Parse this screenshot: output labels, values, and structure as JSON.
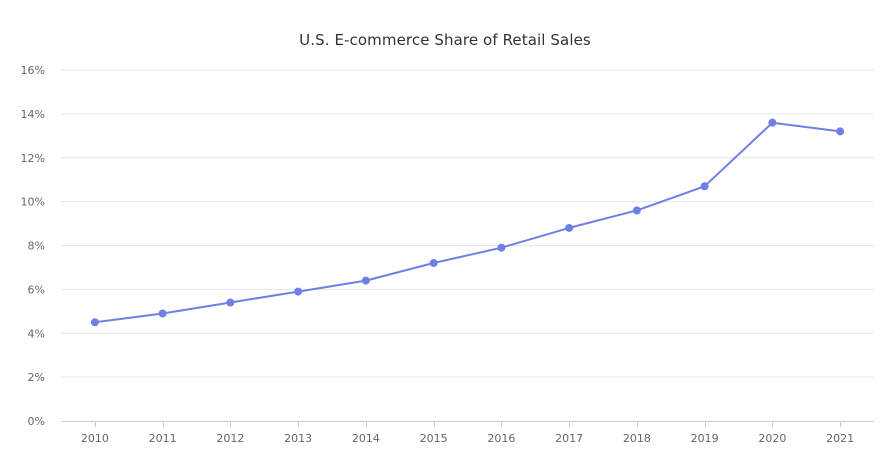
{
  "chart_data": {
    "type": "line",
    "title": "U.S. E-commerce Share of Retail Sales",
    "xlabel": "",
    "ylabel": "",
    "categories": [
      "2010",
      "2011",
      "2012",
      "2013",
      "2014",
      "2015",
      "2016",
      "2017",
      "2018",
      "2019",
      "2020",
      "2021"
    ],
    "series": [
      {
        "values": [
          4.5,
          4.9,
          5.4,
          5.9,
          6.4,
          7.2,
          7.9,
          8.8,
          9.6,
          10.7,
          13.6,
          13.2
        ]
      }
    ],
    "ylim": [
      0,
      16
    ],
    "yticks": [
      0,
      2,
      4,
      6,
      8,
      10,
      12,
      14,
      16
    ],
    "ytick_labels": [
      "0%",
      "2%",
      "4%",
      "6%",
      "8%",
      "10%",
      "12%",
      "14%",
      "16%"
    ],
    "grid": true,
    "legend": "none",
    "colors": {
      "line": "#6f7fe6",
      "grid": "#e6e6e6",
      "axis": "#cccccc",
      "tick_text": "#666666",
      "title_text": "#333333"
    }
  }
}
